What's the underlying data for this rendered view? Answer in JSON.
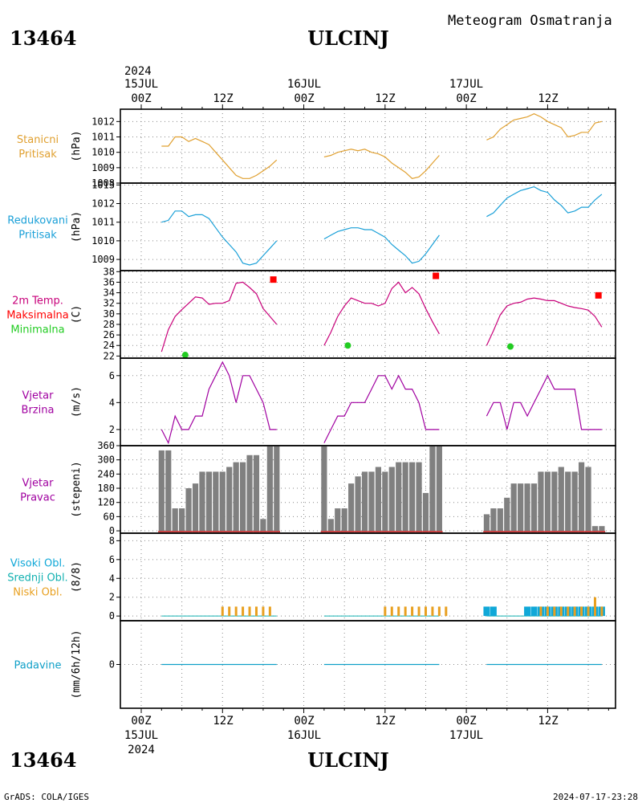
{
  "header": {
    "station_id": "13464",
    "station_name": "ULCINJ",
    "product": "Meteogram Osmatranja"
  },
  "time_axis": {
    "top_year": "2024",
    "bottom_year": "2024",
    "hour_labels": [
      "00Z",
      "12Z",
      "00Z",
      "12Z",
      "00Z",
      "12Z"
    ],
    "day_labels": [
      "15JUL",
      "16JUL",
      "17JUL"
    ]
  },
  "footer": {
    "left": "GrADS: COLA/IGES",
    "right": "2024-07-17-23:28"
  },
  "colors": {
    "station_pressure": "#e0a030",
    "reduced_pressure": "#1aa0d8",
    "temperature": "#c8007a",
    "tmax": "#ff0000",
    "tmin": "#22cc22",
    "wind": "#a000a0",
    "wind_dir_bar": "#808080",
    "cloud_high": "#10a8d8",
    "cloud_mid": "#10b0b0",
    "cloud_low": "#e8a020",
    "precip": "#10a0c8"
  },
  "chart_data": [
    {
      "type": "line",
      "labels": [
        "Stanicni",
        "Pritisak"
      ],
      "ylabel": "(hPa)",
      "ylim": [
        1008,
        1012.8
      ],
      "yticks": [
        1008,
        1009,
        1010,
        1011,
        1012
      ],
      "x_unit": "hours since 15JUL 00Z",
      "series": [
        {
          "x": [
            3,
            4,
            5,
            6,
            7,
            8,
            9,
            10,
            11,
            12,
            13,
            14,
            15,
            16,
            17,
            18,
            19,
            20
          ],
          "values": [
            1010.4,
            1010.4,
            1011.0,
            1011.0,
            1010.7,
            1010.9,
            1010.7,
            1010.5,
            1010.0,
            1009.5,
            1009.0,
            1008.5,
            1008.3,
            1008.3,
            1008.5,
            1008.8,
            1009.1,
            1009.5
          ]
        },
        {
          "x": [
            27,
            28,
            29,
            30,
            31,
            32,
            33,
            34,
            35,
            36,
            37,
            38,
            39,
            40,
            41,
            42,
            43,
            44
          ],
          "values": [
            1009.7,
            1009.8,
            1010.0,
            1010.1,
            1010.2,
            1010.1,
            1010.2,
            1010.0,
            1009.9,
            1009.7,
            1009.3,
            1009.0,
            1008.7,
            1008.3,
            1008.4,
            1008.8,
            1009.3,
            1009.8
          ]
        },
        {
          "x": [
            51,
            52,
            53,
            54,
            55,
            56,
            57,
            58,
            59,
            60,
            61,
            62,
            63,
            64,
            65,
            66,
            67,
            68
          ],
          "values": [
            1010.8,
            1011.0,
            1011.5,
            1011.8,
            1012.1,
            1012.2,
            1012.3,
            1012.5,
            1012.3,
            1012.0,
            1011.8,
            1011.6,
            1011.0,
            1011.1,
            1011.3,
            1011.3,
            1011.9,
            1012.0
          ]
        }
      ]
    },
    {
      "type": "line",
      "labels": [
        "Redukovani",
        "Pritisak"
      ],
      "ylabel": "(hPa)",
      "ylim": [
        1008.4,
        1013.1
      ],
      "yticks": [
        1009,
        1010,
        1011,
        1012,
        1013
      ],
      "series": [
        {
          "x": [
            3,
            4,
            5,
            6,
            7,
            8,
            9,
            10,
            11,
            12,
            13,
            14,
            15,
            16,
            17,
            18,
            19,
            20
          ],
          "values": [
            1011.0,
            1011.1,
            1011.6,
            1011.6,
            1011.3,
            1011.4,
            1011.4,
            1011.2,
            1010.7,
            1010.2,
            1009.8,
            1009.4,
            1008.8,
            1008.7,
            1008.8,
            1009.2,
            1009.6,
            1010.0
          ]
        },
        {
          "x": [
            27,
            28,
            29,
            30,
            31,
            32,
            33,
            34,
            35,
            36,
            37,
            38,
            39,
            40,
            41,
            42,
            43,
            44
          ],
          "values": [
            1010.1,
            1010.3,
            1010.5,
            1010.6,
            1010.7,
            1010.7,
            1010.6,
            1010.6,
            1010.4,
            1010.2,
            1009.8,
            1009.5,
            1009.2,
            1008.8,
            1008.9,
            1009.3,
            1009.8,
            1010.3
          ]
        },
        {
          "x": [
            51,
            52,
            53,
            54,
            55,
            56,
            57,
            58,
            59,
            60,
            61,
            62,
            63,
            64,
            65,
            66,
            67,
            68
          ],
          "values": [
            1011.3,
            1011.5,
            1011.9,
            1012.3,
            1012.5,
            1012.7,
            1012.8,
            1012.9,
            1012.7,
            1012.6,
            1012.2,
            1011.9,
            1011.5,
            1011.6,
            1011.8,
            1011.8,
            1012.2,
            1012.5
          ]
        }
      ]
    },
    {
      "type": "line",
      "labels": [
        "2m Temp.",
        "Maksimalna",
        "Minimalna"
      ],
      "label_colors": [
        "#c8007a",
        "#ff0000",
        "#22cc22"
      ],
      "ylabel": "(C)",
      "ylim": [
        21.6,
        38.2
      ],
      "yticks": [
        22,
        24,
        26,
        28,
        30,
        32,
        34,
        36,
        38
      ],
      "series": [
        {
          "x": [
            3,
            4,
            5,
            6,
            7,
            8,
            9,
            10,
            11,
            12,
            13,
            14,
            15,
            16,
            17,
            18,
            19,
            20
          ],
          "values": [
            22.8,
            27.0,
            29.5,
            30.8,
            32.0,
            33.2,
            33.0,
            31.8,
            32.0,
            32.0,
            32.5,
            35.8,
            36.0,
            35.0,
            33.8,
            31.0,
            29.5,
            28.0
          ]
        },
        {
          "x": [
            27,
            28,
            29,
            30,
            31,
            32,
            33,
            34,
            35,
            36,
            37,
            38,
            39,
            40,
            41,
            42,
            43,
            44
          ],
          "values": [
            24.0,
            26.5,
            29.5,
            31.5,
            33.0,
            32.5,
            32.0,
            32.0,
            31.5,
            32.0,
            34.8,
            36.0,
            34.0,
            35.0,
            33.8,
            31.0,
            28.5,
            26.2
          ]
        },
        {
          "x": [
            51,
            52,
            53,
            54,
            55,
            56,
            57,
            58,
            59,
            60,
            61,
            62,
            63,
            64,
            65,
            66,
            67,
            68
          ],
          "values": [
            24.0,
            26.8,
            29.8,
            31.5,
            32.0,
            32.2,
            32.8,
            33.0,
            32.8,
            32.5,
            32.5,
            32.0,
            31.5,
            31.2,
            31.0,
            30.7,
            29.5,
            27.5
          ]
        }
      ],
      "tmax": [
        {
          "x": 19.5,
          "value": 36.5
        },
        {
          "x": 43.5,
          "value": 37.2
        },
        {
          "x": 67.5,
          "value": 33.5
        }
      ],
      "tmin": [
        {
          "x": 6.5,
          "value": 22.2
        },
        {
          "x": 30.5,
          "value": 24.0
        },
        {
          "x": 54.5,
          "value": 23.8
        }
      ]
    },
    {
      "type": "line",
      "labels": [
        "Vjetar",
        "Brzina"
      ],
      "ylabel": "(m/s)",
      "ylim": [
        0.8,
        7.3
      ],
      "yticks": [
        2,
        4,
        6
      ],
      "series": [
        {
          "x": [
            3,
            4,
            5,
            6,
            7,
            8,
            9,
            10,
            11,
            12,
            13,
            14,
            15,
            16,
            17,
            18,
            19,
            20
          ],
          "values": [
            2,
            1,
            3,
            2,
            2,
            3,
            3,
            5,
            6,
            7,
            6,
            4,
            6,
            6,
            5,
            4,
            2,
            2
          ]
        },
        {
          "x": [
            27,
            28,
            29,
            30,
            31,
            32,
            33,
            34,
            35,
            36,
            37,
            38,
            39,
            40,
            41,
            42,
            43,
            44
          ],
          "values": [
            1,
            2,
            3,
            3,
            4,
            4,
            4,
            5,
            6,
            6,
            5,
            6,
            5,
            5,
            4,
            2,
            2,
            2
          ]
        },
        {
          "x": [
            51,
            52,
            53,
            54,
            55,
            56,
            57,
            58,
            59,
            60,
            61,
            62,
            63,
            64,
            65,
            66,
            67,
            68
          ],
          "values": [
            3,
            4,
            4,
            2,
            4,
            4,
            3,
            4,
            5,
            6,
            5,
            5,
            5,
            5,
            2,
            2,
            2,
            2
          ]
        }
      ]
    },
    {
      "type": "bar",
      "labels": [
        "Vjetar",
        "Pravac"
      ],
      "ylabel": "(stepeni)",
      "ylim": [
        -10,
        360
      ],
      "yticks": [
        0,
        60,
        120,
        180,
        240,
        300,
        360
      ],
      "series": [
        {
          "x": [
            3,
            4,
            5,
            6,
            7,
            8,
            9,
            10,
            11,
            12,
            13,
            14,
            15,
            16,
            17,
            18,
            19,
            20
          ],
          "values": [
            340,
            340,
            95,
            95,
            180,
            200,
            250,
            250,
            250,
            250,
            270,
            290,
            290,
            320,
            320,
            50,
            360,
            360
          ]
        },
        {
          "x": [
            27,
            28,
            29,
            30,
            31,
            32,
            33,
            34,
            35,
            36,
            37,
            38,
            39,
            40,
            41,
            42,
            43,
            44
          ],
          "values": [
            360,
            50,
            95,
            95,
            200,
            230,
            250,
            250,
            270,
            250,
            270,
            290,
            290,
            290,
            290,
            160,
            360,
            360
          ]
        },
        {
          "x": [
            51,
            52,
            53,
            54,
            55,
            56,
            57,
            58,
            59,
            60,
            61,
            62,
            63,
            64,
            65,
            66,
            67,
            68
          ],
          "values": [
            70,
            95,
            95,
            140,
            200,
            200,
            200,
            200,
            250,
            250,
            250,
            270,
            250,
            250,
            290,
            270,
            20,
            20
          ]
        }
      ]
    },
    {
      "type": "bar",
      "labels": [
        "Visoki Obl.",
        "Srednji Obl.",
        "Niski Obl."
      ],
      "label_colors": [
        "#10a8d8",
        "#10b0b0",
        "#e8a020"
      ],
      "ylabel": "(8/8)",
      "ylim": [
        -0.5,
        8.8
      ],
      "yticks": [
        0,
        2,
        4,
        6,
        8
      ],
      "low_clouds": [
        {
          "x": [
            12,
            13,
            14,
            15,
            16,
            17,
            18,
            19
          ],
          "values": [
            1,
            1,
            1,
            1,
            1,
            1,
            1,
            1
          ]
        },
        {
          "x": [
            36,
            37,
            38,
            39,
            40,
            41,
            42,
            43,
            44,
            45
          ],
          "values": [
            1,
            1,
            1,
            1,
            1,
            1,
            1,
            1,
            1,
            1
          ]
        },
        {
          "x": [
            59,
            60,
            61,
            62,
            63,
            64,
            65,
            66,
            67,
            68
          ],
          "values": [
            1,
            1,
            1,
            1,
            1,
            1,
            1,
            1,
            2,
            1
          ]
        }
      ],
      "high_clouds": [
        {
          "x": [
            51,
            52,
            57,
            58,
            59,
            60,
            61,
            62,
            63,
            64,
            65,
            66,
            67,
            68
          ],
          "values": [
            1,
            1,
            1,
            1,
            1,
            1,
            1,
            1,
            1,
            1,
            1,
            1,
            1,
            1
          ]
        }
      ]
    },
    {
      "type": "line",
      "labels": [
        "Padavine"
      ],
      "ylabel": "(mm/6h/12h)",
      "ylim": [
        -2,
        2
      ],
      "yticks": [
        0
      ],
      "series": [
        {
          "x": [
            3,
            20
          ],
          "values": [
            0,
            0
          ]
        },
        {
          "x": [
            27,
            44
          ],
          "values": [
            0,
            0
          ]
        },
        {
          "x": [
            51,
            68
          ],
          "values": [
            0,
            0
          ]
        }
      ]
    }
  ]
}
